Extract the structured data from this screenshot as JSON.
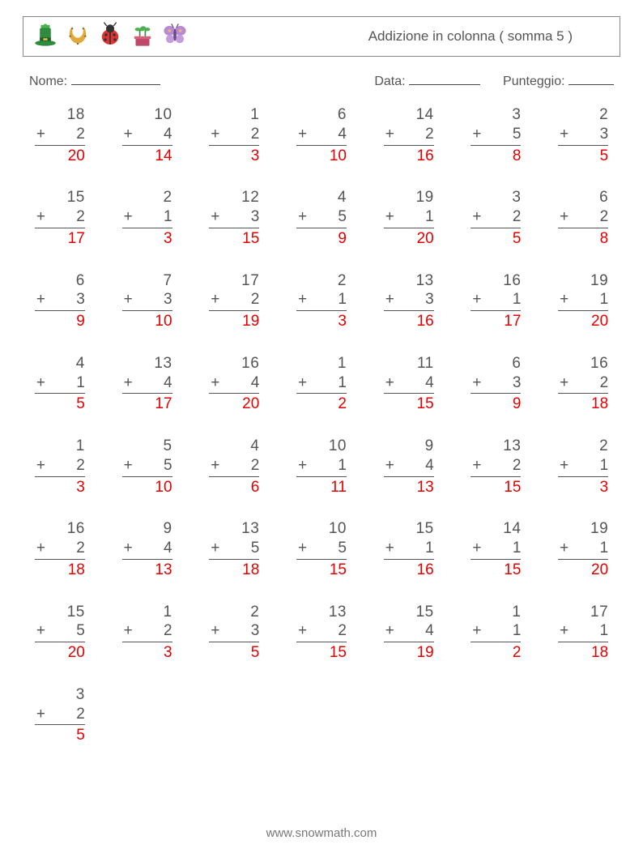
{
  "header": {
    "title": "Addizione in colonna ( somma 5 )",
    "icons": [
      "hat-icon",
      "horseshoe-icon",
      "ladybug-icon",
      "plant-icon",
      "butterfly-icon"
    ]
  },
  "fields": {
    "name_label": "Nome:",
    "date_label": "Data:",
    "score_label": "Punteggio:",
    "name_uline_width": 110,
    "date_uline_width": 88,
    "score_uline_width": 56
  },
  "layout": {
    "columns": 7,
    "col_gap": 36,
    "row_gap": 28,
    "problem_width": 62,
    "font_size": 19,
    "text_color": "#555555",
    "answer_color": "#e40000",
    "rule_color": "#555555"
  },
  "footer": "www.snowmath.com",
  "problems": [
    {
      "a": 18,
      "b": 2,
      "ans": 20
    },
    {
      "a": 10,
      "b": 4,
      "ans": 14
    },
    {
      "a": 1,
      "b": 2,
      "ans": 3
    },
    {
      "a": 6,
      "b": 4,
      "ans": 10
    },
    {
      "a": 14,
      "b": 2,
      "ans": 16
    },
    {
      "a": 3,
      "b": 5,
      "ans": 8
    },
    {
      "a": 2,
      "b": 3,
      "ans": 5
    },
    {
      "a": 15,
      "b": 2,
      "ans": 17
    },
    {
      "a": 2,
      "b": 1,
      "ans": 3
    },
    {
      "a": 12,
      "b": 3,
      "ans": 15
    },
    {
      "a": 4,
      "b": 5,
      "ans": 9
    },
    {
      "a": 19,
      "b": 1,
      "ans": 20
    },
    {
      "a": 3,
      "b": 2,
      "ans": 5
    },
    {
      "a": 6,
      "b": 2,
      "ans": 8
    },
    {
      "a": 6,
      "b": 3,
      "ans": 9
    },
    {
      "a": 7,
      "b": 3,
      "ans": 10
    },
    {
      "a": 17,
      "b": 2,
      "ans": 19
    },
    {
      "a": 2,
      "b": 1,
      "ans": 3
    },
    {
      "a": 13,
      "b": 3,
      "ans": 16
    },
    {
      "a": 16,
      "b": 1,
      "ans": 17
    },
    {
      "a": 19,
      "b": 1,
      "ans": 20
    },
    {
      "a": 4,
      "b": 1,
      "ans": 5
    },
    {
      "a": 13,
      "b": 4,
      "ans": 17
    },
    {
      "a": 16,
      "b": 4,
      "ans": 20
    },
    {
      "a": 1,
      "b": 1,
      "ans": 2
    },
    {
      "a": 11,
      "b": 4,
      "ans": 15
    },
    {
      "a": 6,
      "b": 3,
      "ans": 9
    },
    {
      "a": 16,
      "b": 2,
      "ans": 18
    },
    {
      "a": 1,
      "b": 2,
      "ans": 3
    },
    {
      "a": 5,
      "b": 5,
      "ans": 10
    },
    {
      "a": 4,
      "b": 2,
      "ans": 6
    },
    {
      "a": 10,
      "b": 1,
      "ans": 11
    },
    {
      "a": 9,
      "b": 4,
      "ans": 13
    },
    {
      "a": 13,
      "b": 2,
      "ans": 15
    },
    {
      "a": 2,
      "b": 1,
      "ans": 3
    },
    {
      "a": 16,
      "b": 2,
      "ans": 18
    },
    {
      "a": 9,
      "b": 4,
      "ans": 13
    },
    {
      "a": 13,
      "b": 5,
      "ans": 18
    },
    {
      "a": 10,
      "b": 5,
      "ans": 15
    },
    {
      "a": 15,
      "b": 1,
      "ans": 16
    },
    {
      "a": 14,
      "b": 1,
      "ans": 15
    },
    {
      "a": 19,
      "b": 1,
      "ans": 20
    },
    {
      "a": 15,
      "b": 5,
      "ans": 20
    },
    {
      "a": 1,
      "b": 2,
      "ans": 3
    },
    {
      "a": 2,
      "b": 3,
      "ans": 5
    },
    {
      "a": 13,
      "b": 2,
      "ans": 15
    },
    {
      "a": 15,
      "b": 4,
      "ans": 19
    },
    {
      "a": 1,
      "b": 1,
      "ans": 2
    },
    {
      "a": 17,
      "b": 1,
      "ans": 18
    },
    {
      "a": 3,
      "b": 2,
      "ans": 5
    }
  ]
}
